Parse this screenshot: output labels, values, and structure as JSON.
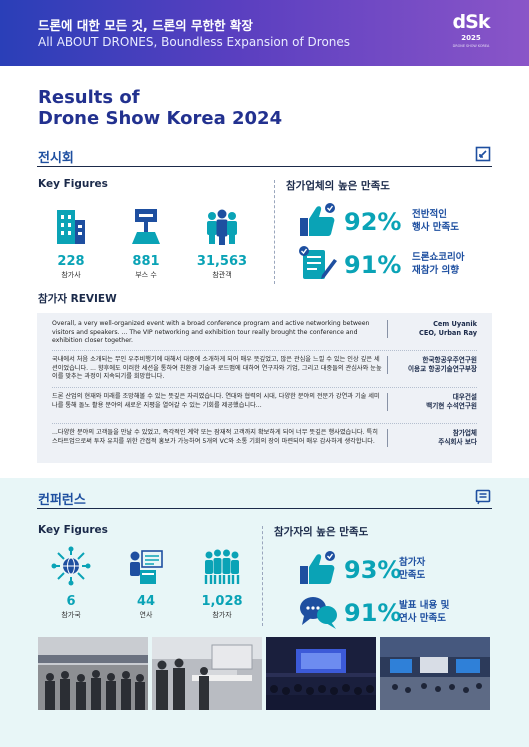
{
  "header": {
    "line1": "드론에 대한 모든 것, 드론의 무한한 확장",
    "line2": "All ABOUT DRONES, Boundless Expansion of Drones",
    "logo_mark": "dSk",
    "logo_year": "2025",
    "logo_sub": "DRONE SHOW KOREA"
  },
  "title": {
    "line1": "Results of",
    "line2": "Drone Show Korea 2024"
  },
  "exhibition": {
    "section_title": "전시회",
    "key_figures_title": "Key Figures",
    "stats": [
      {
        "icon": "building-icon",
        "value": "228",
        "label": "참가사"
      },
      {
        "icon": "booth-sign-icon",
        "value": "881",
        "label": "부스 수"
      },
      {
        "icon": "crowd-icon",
        "value": "31,563",
        "label": "참관객"
      }
    ],
    "satisfaction_title": "참가업체의 높은 만족도",
    "satisfaction": [
      {
        "icon": "thumbs-up-icon",
        "pct": "92%",
        "label_line1": "전반적인",
        "label_line2": "행사 만족도"
      },
      {
        "icon": "checklist-pen-icon",
        "pct": "91%",
        "label_line1": "드론쇼코리아",
        "label_line2": "재참가 의향"
      }
    ],
    "review_title": "참가자 REVIEW",
    "reviews": [
      {
        "text": "Overall, a very well-organized event with a broad conference program and active networking between visitors and speakers. ... The VIP networking and exhibition tour really brought the conference and exhibition closer together.",
        "author_line1": "Cem Uyanik",
        "author_line2": "CEO, Urban Ray"
      },
      {
        "text": "국내에서 처음 소개되는 무인 우주비행기에 대해서 대중에 소개하게 되어 매우 뜻깊었고, 많은 관심을 느낄 수 있는 인상 깊은 세션이었습니다. ... 향후에도 이러한 세션을 통하여 친환경 기술과 로드맵에 대하여 연구자와 기업, 그리고 대중들의 관심사와 눈높이를 맞추는 과정이 지속되기를 희망합니다.",
        "author_line1": "한국항공우주연구원",
        "author_line2": "이용교 항공기술연구부장"
      },
      {
        "text": "드론 산업의 현재와 미래를 조망해볼 수 있는 뜻깊은 자리였습니다. 연대와 협력의 시대, 다양한 분야의 전문가 강연과 기술 세미나를 통해 돌노 활용 분야의 새로운 지평을 열어갈 수 있는 기회를 제공했습니다...",
        "author_line1": "대우건설",
        "author_line2": "백기현 수석연구원"
      },
      {
        "text": "...다양한 분야의 고객들을 만날 수 있었고, 즉각적인 계약 또는 잠재적 고객까지 확보하게 되어 너무 뜻깊은 행사였습니다. 특히 스타트업으로써 투자 유치를 위한 간접적 홍보가 가능하여 5개의 VC와 소통 기회의 장이 마련되어 매우 감사하게 생각합니다.",
        "author_line1": "참가업체",
        "author_line2": "주식회사 보다"
      }
    ]
  },
  "conference": {
    "section_title": "컨퍼런스",
    "key_figures_title": "Key Figures",
    "stats": [
      {
        "icon": "globe-network-icon",
        "value": "6",
        "label": "참가국"
      },
      {
        "icon": "speaker-podium-icon",
        "value": "44",
        "label": "연사"
      },
      {
        "icon": "audience-icon",
        "value": "1,028",
        "label": "참가자"
      }
    ],
    "satisfaction_title": "참가자의 높은 만족도",
    "satisfaction": [
      {
        "icon": "thumbs-up-icon",
        "pct": "93%",
        "label_line1": "참가자",
        "label_line2": "만족도"
      },
      {
        "icon": "speech-bubbles-icon",
        "pct": "91%",
        "label_line1": "발표 내용 및",
        "label_line2": "연사 만족도"
      }
    ]
  },
  "colors": {
    "accent": "#0aa3b6",
    "navy": "#1e4fa0",
    "header_start": "#2a3fb8",
    "header_end": "#8a55c8",
    "conference_bg": "#e8f6f7"
  }
}
